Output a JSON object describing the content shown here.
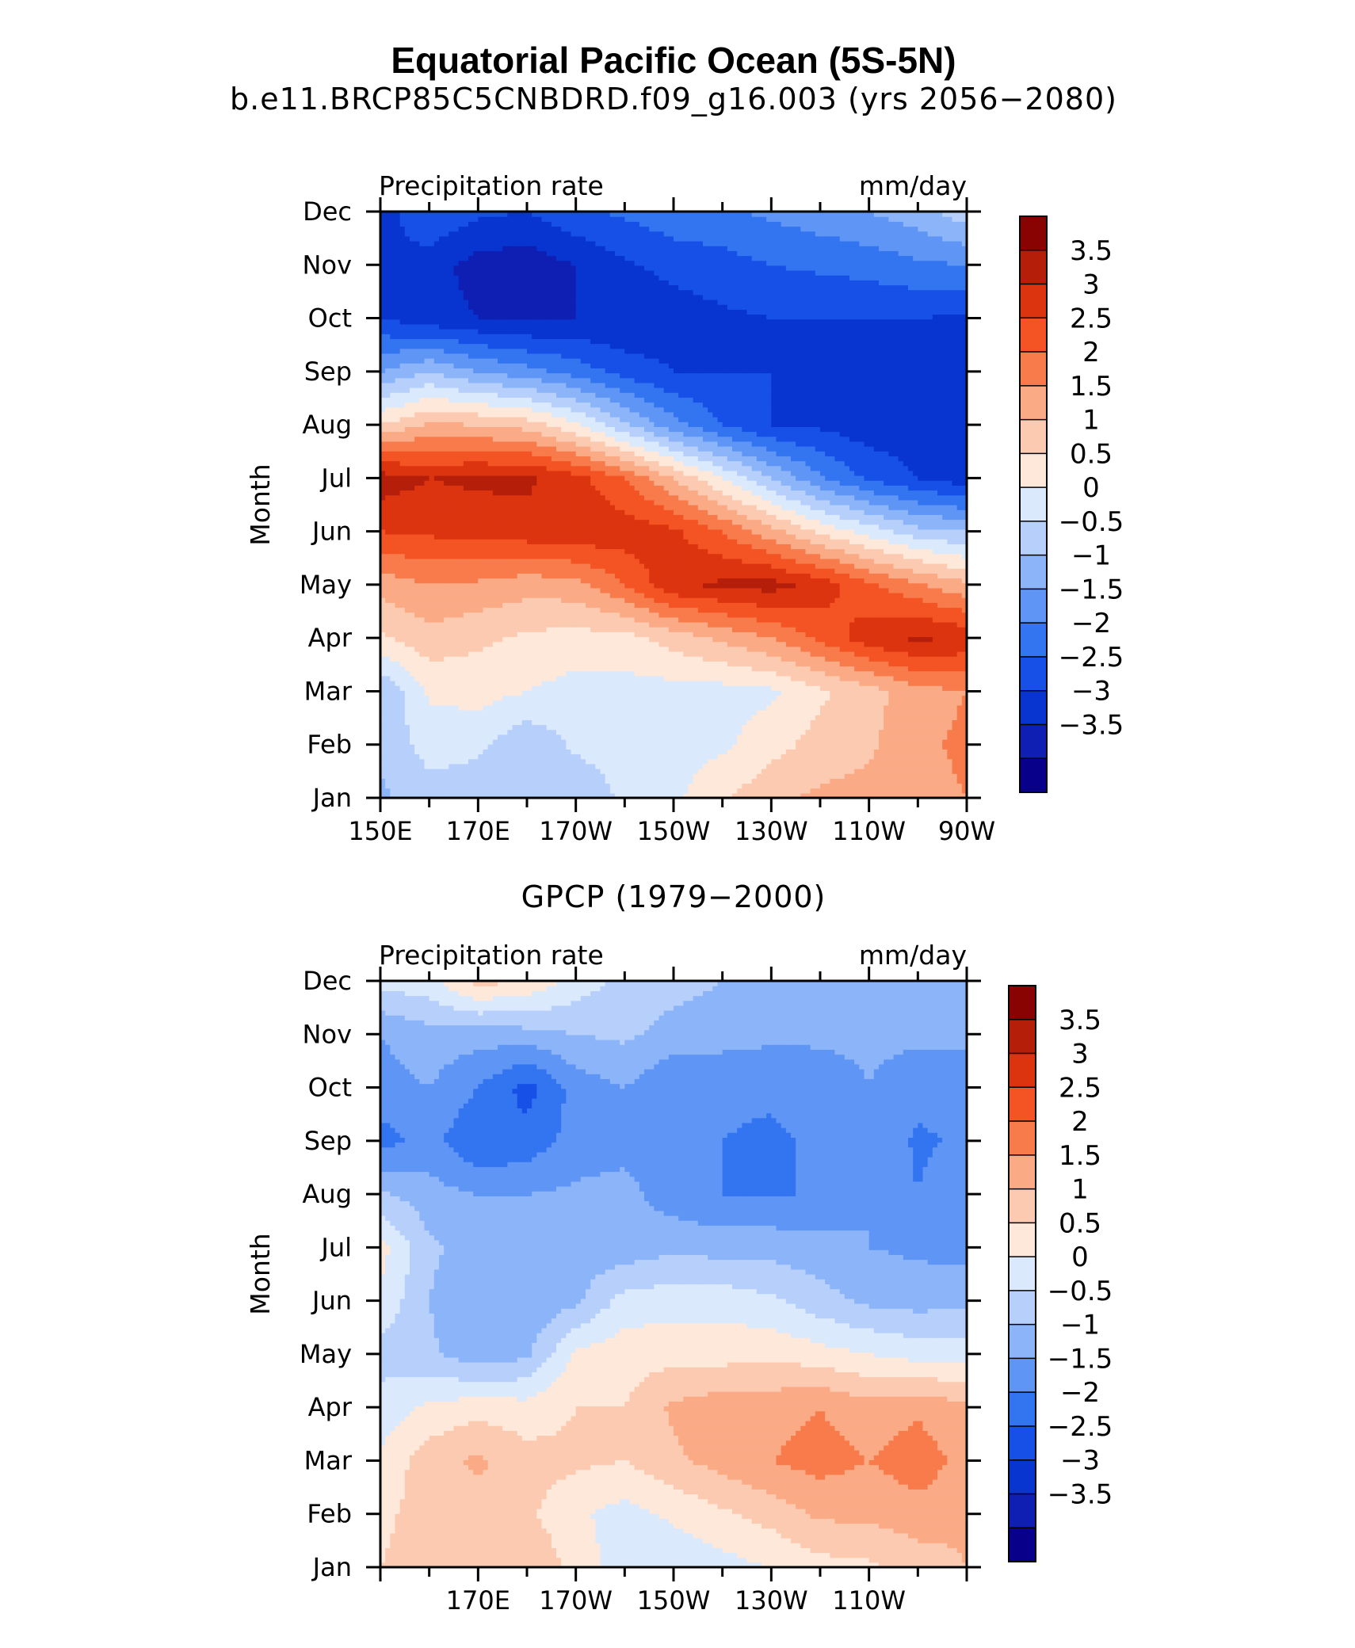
{
  "figure": {
    "title": "Equatorial Pacific Ocean (5S-5N)",
    "colormap": [
      "#08008a",
      "#0f1fb3",
      "#0834cf",
      "#1650e6",
      "#3374f0",
      "#5f96f5",
      "#8cb4f8",
      "#b6cffb",
      "#dbe9fd",
      "#fde8da",
      "#fccab0",
      "#fbaa86",
      "#f87b4c",
      "#f45424",
      "#dd3410",
      "#b51f0a",
      "#8a0303"
    ],
    "levels": [
      -3.5,
      -3,
      -2.5,
      -2,
      -1.5,
      -1,
      -0.5,
      0,
      0.5,
      1,
      1.5,
      2,
      2.5,
      3,
      3.5
    ]
  },
  "chart_data": [
    {
      "type": "heatmap",
      "title": "b.e11.BRCP85C5CNBDRD.f09_g16.003 (yrs 2056−2080)",
      "left_label": "Precipitation rate",
      "right_label": "mm/day",
      "xlabel": "",
      "ylabel": "Month",
      "x": [
        150,
        160,
        170,
        180,
        190,
        200,
        210,
        220,
        230,
        240,
        250,
        260,
        270
      ],
      "x_tick_labels": [
        "150E",
        "170E",
        "170W",
        "150W",
        "130W",
        "110W",
        "90W"
      ],
      "y": [
        "Jan",
        "Feb",
        "Mar",
        "Apr",
        "May",
        "Jun",
        "Jul",
        "Aug",
        "Sep",
        "Oct",
        "Nov",
        "Dec"
      ],
      "colorbar_labels": [
        "3.5",
        "3",
        "2.5",
        "2",
        "1.5",
        "1",
        "0.5",
        "0",
        "−0.5",
        "−1",
        "−1.5",
        "−2",
        "−2.5",
        "−3",
        "−3.5"
      ],
      "z": [
        [
          -0.6,
          -0.2,
          -0.3,
          -0.5,
          -0.4,
          0.1,
          0.4,
          0.9,
          1.4,
          1.6,
          1.7,
          1.8,
          2.0
        ],
        [
          -0.4,
          0.2,
          0.1,
          -0.4,
          0.1,
          0.2,
          0.3,
          0.4,
          0.8,
          1.2,
          1.4,
          1.9,
          2.1
        ],
        [
          -0.5,
          0.6,
          0.7,
          0.5,
          0.3,
          0.3,
          0.3,
          0.3,
          0.4,
          0.9,
          1.3,
          1.8,
          2.0
        ],
        [
          0.9,
          1.3,
          1.1,
          0.9,
          0.8,
          0.8,
          1.2,
          1.6,
          2.0,
          2.6,
          3.3,
          3.6,
          3.4
        ],
        [
          1.7,
          2.0,
          1.9,
          1.7,
          1.8,
          2.5,
          3.4,
          3.6,
          3.7,
          3.3,
          2.6,
          2.1,
          1.6
        ],
        [
          3.0,
          3.1,
          3.2,
          3.3,
          3.4,
          3.3,
          3.1,
          2.5,
          1.7,
          0.9,
          0.3,
          -0.3,
          -0.5
        ],
        [
          3.8,
          3.5,
          3.6,
          3.6,
          3.2,
          2.5,
          1.5,
          0.5,
          -0.5,
          -1.4,
          -2.1,
          -2.5,
          -2.8
        ],
        [
          1.0,
          1.6,
          1.5,
          1.3,
          0.6,
          -0.4,
          -1.3,
          -2.0,
          -2.5,
          -2.6,
          -2.8,
          -2.8,
          -3.0
        ],
        [
          -1.0,
          -0.5,
          -1.0,
          -1.3,
          -1.7,
          -2.2,
          -2.5,
          -2.5,
          -2.5,
          -2.6,
          -2.6,
          -2.7,
          -3.0
        ],
        [
          -2.5,
          -2.8,
          -3.0,
          -3.1,
          -3.0,
          -3.0,
          -2.8,
          -2.6,
          -2.5,
          -2.5,
          -2.5,
          -2.5,
          -2.6
        ],
        [
          -2.5,
          -2.8,
          -3.2,
          -3.3,
          -3.0,
          -2.6,
          -2.3,
          -2.2,
          -2.0,
          -1.9,
          -1.8,
          -1.6,
          -1.5
        ],
        [
          -2.8,
          -2.0,
          -2.4,
          -2.5,
          -2.1,
          -1.9,
          -1.7,
          -1.6,
          -1.4,
          -1.2,
          -1.0,
          -0.7,
          -0.2
        ]
      ],
      "zlim": [
        -4,
        4
      ]
    },
    {
      "type": "heatmap",
      "title": "GPCP (1979−2000)",
      "left_label": "Precipitation rate",
      "right_label": "mm/day",
      "xlabel": "",
      "ylabel": "Month",
      "x": [
        150,
        160,
        170,
        180,
        190,
        200,
        210,
        220,
        230,
        240,
        250,
        260,
        270
      ],
      "x_tick_labels": [
        "170E",
        "170W",
        "150W",
        "130W",
        "110W"
      ],
      "y": [
        "Jan",
        "Feb",
        "Mar",
        "Apr",
        "May",
        "Jun",
        "Jul",
        "Aug",
        "Sep",
        "Oct",
        "Nov",
        "Dec"
      ],
      "colorbar_labels": [
        "3.5",
        "3",
        "2.5",
        "2",
        "1.5",
        "1",
        "0.5",
        "0",
        "−0.5",
        "−1",
        "−1.5",
        "−2",
        "−2.5",
        "−3",
        "−3.5"
      ],
      "z": [
        [
          1.0,
          1.2,
          1.0,
          1.5,
          0.8,
          0.2,
          0.1,
          0.3,
          0.5,
          0.8,
          0.9,
          1.2,
          1.5
        ],
        [
          0.9,
          1.2,
          1.3,
          1.1,
          0.6,
          0.3,
          0.6,
          0.9,
          1.2,
          1.6,
          1.6,
          1.8,
          1.6
        ],
        [
          0.6,
          1.3,
          1.6,
          1.2,
          1.1,
          1.0,
          1.4,
          1.7,
          2.0,
          2.2,
          2.0,
          2.3,
          1.8
        ],
        [
          0.2,
          0.6,
          0.8,
          0.7,
          1.0,
          1.0,
          1.6,
          1.8,
          1.8,
          2.0,
          1.7,
          1.9,
          1.6
        ],
        [
          -0.2,
          -0.4,
          -0.8,
          -0.6,
          0.6,
          0.8,
          0.8,
          0.8,
          0.9,
          0.7,
          0.5,
          0.3,
          0.3
        ],
        [
          0.4,
          -0.5,
          -1.0,
          -0.9,
          -0.6,
          0.2,
          0.3,
          0.3,
          0.1,
          -0.3,
          -0.6,
          -0.7,
          -0.6
        ],
        [
          0.7,
          -0.4,
          -0.7,
          -0.8,
          -0.8,
          -0.8,
          -0.6,
          -0.7,
          -0.7,
          -0.8,
          -1.0,
          -1.1,
          -1.2
        ],
        [
          -0.4,
          -0.8,
          -1.0,
          -1.0,
          -0.9,
          -0.8,
          -1.3,
          -1.5,
          -1.5,
          -1.5,
          -1.0,
          -1.5,
          -1.0
        ],
        [
          -1.7,
          -1.3,
          -2.0,
          -1.8,
          -1.3,
          -1.2,
          -1.5,
          -1.5,
          -1.6,
          -1.4,
          -1.0,
          -1.6,
          -1.4
        ],
        [
          -1.2,
          -1.0,
          -1.5,
          -2.2,
          -1.3,
          -1.0,
          -1.5,
          -1.4,
          -1.4,
          -1.3,
          -1.0,
          -1.3,
          -1.3
        ],
        [
          -1.0,
          -0.7,
          -0.8,
          -0.7,
          -0.5,
          -0.4,
          -0.7,
          -0.8,
          -0.9,
          -0.9,
          -0.9,
          -0.9,
          -0.9
        ],
        [
          0.2,
          0.3,
          1.2,
          0.9,
          0.3,
          -0.2,
          -0.3,
          -0.5,
          -0.6,
          -0.7,
          -0.8,
          -0.8,
          -0.9
        ]
      ],
      "zlim": [
        -4,
        4
      ]
    }
  ]
}
